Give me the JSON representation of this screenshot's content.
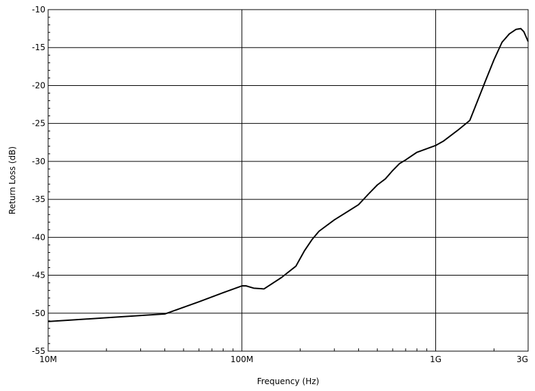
{
  "chart_data": {
    "type": "line",
    "title": "",
    "xlabel": "Frequency (Hz)",
    "ylabel": "Return Loss (dB)",
    "xscale": "log",
    "xlim": [
      10000000,
      3000000000
    ],
    "ylim": [
      -55,
      -10
    ],
    "grid": true,
    "x_ticks": [
      {
        "value": 10000000,
        "label": "10M"
      },
      {
        "value": 100000000,
        "label": "100M"
      },
      {
        "value": 1000000000,
        "label": "1G"
      },
      {
        "value": 3000000000,
        "label": "3G"
      }
    ],
    "y_ticks": [
      {
        "value": -10,
        "label": "-10"
      },
      {
        "value": -15,
        "label": "-15"
      },
      {
        "value": -20,
        "label": "-20"
      },
      {
        "value": -25,
        "label": "-25"
      },
      {
        "value": -30,
        "label": "-30"
      },
      {
        "value": -35,
        "label": "-35"
      },
      {
        "value": -40,
        "label": "-40"
      },
      {
        "value": -45,
        "label": "-45"
      },
      {
        "value": -50,
        "label": "-50"
      },
      {
        "value": -55,
        "label": "-55"
      }
    ],
    "series": [
      {
        "color": "#000000",
        "points": [
          [
            10000000,
            -51.1
          ],
          [
            20000000,
            -50.6
          ],
          [
            40000000,
            -50.1
          ],
          [
            60000000,
            -48.5
          ],
          [
            80000000,
            -47.3
          ],
          [
            100000000,
            -46.4
          ],
          [
            105000000,
            -46.4
          ],
          [
            115000000,
            -46.7
          ],
          [
            130000000,
            -46.8
          ],
          [
            160000000,
            -45.3
          ],
          [
            190000000,
            -43.8
          ],
          [
            210000000,
            -41.8
          ],
          [
            230000000,
            -40.3
          ],
          [
            250000000,
            -39.2
          ],
          [
            300000000,
            -37.7
          ],
          [
            400000000,
            -35.7
          ],
          [
            450000000,
            -34.3
          ],
          [
            500000000,
            -33.1
          ],
          [
            550000000,
            -32.3
          ],
          [
            600000000,
            -31.2
          ],
          [
            650000000,
            -30.3
          ],
          [
            700000000,
            -29.8
          ],
          [
            800000000,
            -28.8
          ],
          [
            1000000000,
            -27.9
          ],
          [
            1100000000,
            -27.3
          ],
          [
            1300000000,
            -25.9
          ],
          [
            1500000000,
            -24.6
          ],
          [
            1600000000,
            -22.8
          ],
          [
            1800000000,
            -19.5
          ],
          [
            2000000000,
            -16.6
          ],
          [
            2200000000,
            -14.3
          ],
          [
            2400000000,
            -13.2
          ],
          [
            2600000000,
            -12.6
          ],
          [
            2750000000,
            -12.5
          ],
          [
            2850000000,
            -12.9
          ],
          [
            3000000000,
            -14.2
          ]
        ]
      }
    ]
  }
}
